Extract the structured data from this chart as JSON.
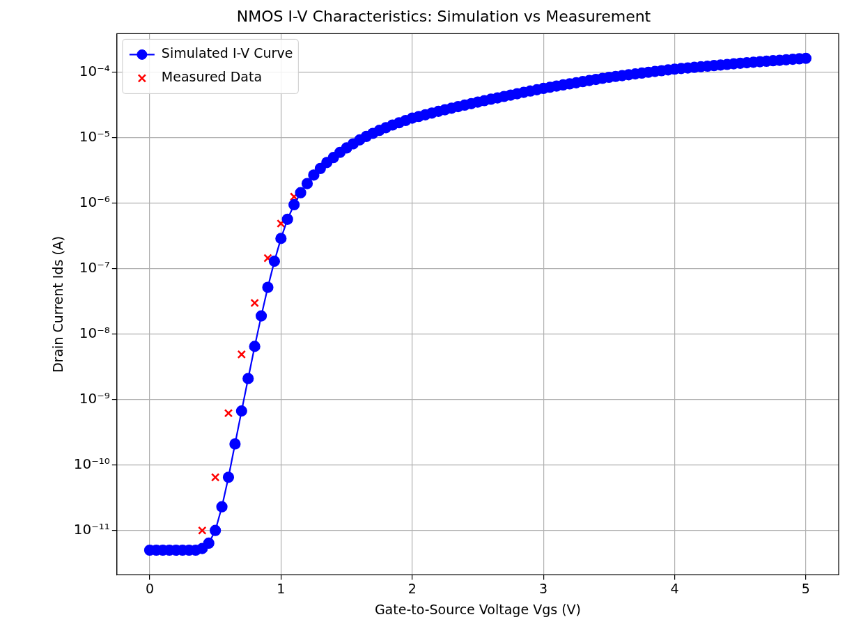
{
  "chart_data": {
    "type": "line",
    "title": "NMOS I-V Characteristics: Simulation vs Measurement",
    "xlabel": "Gate-to-Source Voltage Vgs (V)",
    "ylabel": "Drain Current Ids (A)",
    "log": "y",
    "grid": true,
    "legend": "top left",
    "xlim": [
      -0.25,
      5.25
    ],
    "xticks": [
      0,
      1,
      2,
      3,
      4,
      5
    ],
    "ylim": [
      2.1e-12,
      0.00039
    ],
    "yticks": [
      {
        "value": 1e-11,
        "label": "10⁻¹¹"
      },
      {
        "value": 1e-10,
        "label": "10⁻¹⁰"
      },
      {
        "value": 1e-09,
        "label": "10⁻⁹"
      },
      {
        "value": 1e-08,
        "label": "10⁻⁸"
      },
      {
        "value": 1e-07,
        "label": "10⁻⁷"
      },
      {
        "value": 1e-06,
        "label": "10⁻⁶"
      },
      {
        "value": 1e-05,
        "label": "10⁻⁵"
      },
      {
        "value": 0.0001,
        "label": "10⁻⁴"
      }
    ],
    "series": [
      {
        "name": "Simulated I-V Curve",
        "type": "line",
        "color": "#0000ff",
        "marker": "circle",
        "line_style": "solid",
        "x": [
          0,
          0.05,
          0.1,
          0.15,
          0.2,
          0.25,
          0.3,
          0.35,
          0.4,
          0.45,
          0.5,
          0.55,
          0.6,
          0.65,
          0.7,
          0.75,
          0.8,
          0.85,
          0.9,
          0.95,
          1,
          1.05,
          1.1,
          1.15,
          1.2,
          1.25,
          1.3,
          1.35,
          1.4,
          1.45,
          1.5,
          1.55,
          1.6,
          1.65,
          1.7,
          1.75,
          1.8,
          1.85,
          1.9,
          1.95,
          2,
          2.05,
          2.1,
          2.15,
          2.2,
          2.25,
          2.3,
          2.35,
          2.4,
          2.45,
          2.5,
          2.55,
          2.6,
          2.65,
          2.7,
          2.75,
          2.8,
          2.85,
          2.9,
          2.95,
          3,
          3.05,
          3.1,
          3.15,
          3.2,
          3.25,
          3.3,
          3.35,
          3.4,
          3.45,
          3.5,
          3.55,
          3.6,
          3.65,
          3.7,
          3.75,
          3.8,
          3.85,
          3.9,
          3.95,
          4,
          4.05,
          4.1,
          4.15,
          4.2,
          4.25,
          4.3,
          4.35,
          4.4,
          4.45,
          4.5,
          4.55,
          4.6,
          4.65,
          4.7,
          4.75,
          4.8,
          4.85,
          4.9,
          4.95,
          5
        ],
        "values": [
          5e-12,
          5e-12,
          5e-12,
          5e-12,
          5e-12,
          5e-12,
          5e-12,
          5e-12,
          5.3e-12,
          6.4e-12,
          1e-11,
          2.3e-11,
          6.5e-11,
          2.1e-10,
          6.7e-10,
          2.1e-09,
          6.5e-09,
          1.9e-08,
          5.2e-08,
          1.3e-07,
          2.9e-07,
          5.7e-07,
          9.5e-07,
          1.45e-06,
          2e-06,
          2.7e-06,
          3.4e-06,
          4.2e-06,
          5e-06,
          6e-06,
          7e-06,
          8.1e-06,
          9.3e-06,
          1.05e-05,
          1.17e-05,
          1.3e-05,
          1.43e-05,
          1.57e-05,
          1.7e-05,
          1.84e-05,
          2e-05,
          2.12e-05,
          2.25e-05,
          2.39e-05,
          2.54e-05,
          2.69e-05,
          2.84e-05,
          3e-05,
          3.16e-05,
          3.33e-05,
          3.52e-05,
          3.7e-05,
          3.89e-05,
          4.08e-05,
          4.29e-05,
          4.5e-05,
          4.72e-05,
          4.95e-05,
          5.19e-05,
          5.43e-05,
          5.69e-05,
          5.93e-05,
          6.18e-05,
          6.43e-05,
          6.68e-05,
          6.95e-05,
          7.23e-05,
          7.52e-05,
          7.8e-05,
          8.11e-05,
          8.41e-05,
          8.67e-05,
          8.93e-05,
          9.2e-05,
          9.48e-05,
          9.75e-05,
          0.0001005,
          0.0001033,
          0.0001062,
          0.0001091,
          0.0001122,
          0.0001146,
          0.0001169,
          0.0001194,
          0.0001219,
          0.0001245,
          0.0001271,
          0.0001297,
          0.0001324,
          0.0001352,
          0.000138,
          0.0001406,
          0.0001429,
          0.0001455,
          0.0001479,
          0.0001507,
          0.0001531,
          0.000156,
          0.0001585,
          0.0001614,
          0.0001641
        ]
      },
      {
        "name": "Measured Data",
        "type": "scatter",
        "color": "#ff0000",
        "marker": "cross",
        "x": [
          0.4,
          0.5,
          0.6,
          0.7,
          0.8,
          0.9,
          1,
          1.1
        ],
        "values": [
          1e-11,
          6.5e-11,
          6.2e-10,
          4.9e-09,
          3e-08,
          1.45e-07,
          4.9e-07,
          1.26e-06
        ]
      }
    ]
  }
}
